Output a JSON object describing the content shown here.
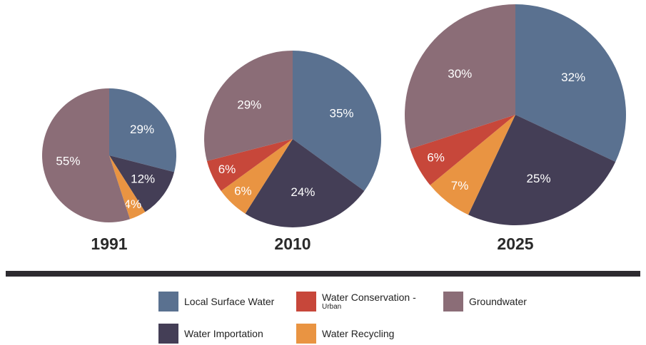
{
  "chart_data": {
    "type": "pie",
    "categories": [
      "Local Surface Water",
      "Water Importation",
      "Water Recycling",
      "Water Conservation - Urban",
      "Groundwater"
    ],
    "colors": {
      "Local Surface Water": "#5a7190",
      "Water Importation": "#443e56",
      "Water Recycling": "#e99442",
      "Water Conservation - Urban": "#c7473a",
      "Groundwater": "#8b6d77"
    },
    "charts": [
      {
        "year": "1991",
        "values": [
          29,
          12,
          4,
          0,
          55
        ],
        "labels": [
          "29%",
          "12%",
          "4%",
          "",
          "55%"
        ]
      },
      {
        "year": "2010",
        "values": [
          35,
          24,
          6,
          6,
          29
        ],
        "labels": [
          "35%",
          "24%",
          "6%",
          "6%",
          "29%"
        ]
      },
      {
        "year": "2025",
        "values": [
          32,
          25,
          7,
          6,
          30
        ],
        "labels": [
          "32%",
          "25%",
          "7%",
          "6%",
          "30%"
        ]
      }
    ],
    "legend": [
      {
        "name": "Local Surface Water",
        "text": "Local Surface Water",
        "sub": ""
      },
      {
        "name": "Water Conservation - Urban",
        "text": "Water Conservation -",
        "sub": "Urban"
      },
      {
        "name": "Groundwater",
        "text": "Groundwater",
        "sub": ""
      },
      {
        "name": "Water Importation",
        "text": "Water Importation",
        "sub": ""
      },
      {
        "name": "Water Recycling",
        "text": "Water Recycling",
        "sub": ""
      }
    ]
  }
}
